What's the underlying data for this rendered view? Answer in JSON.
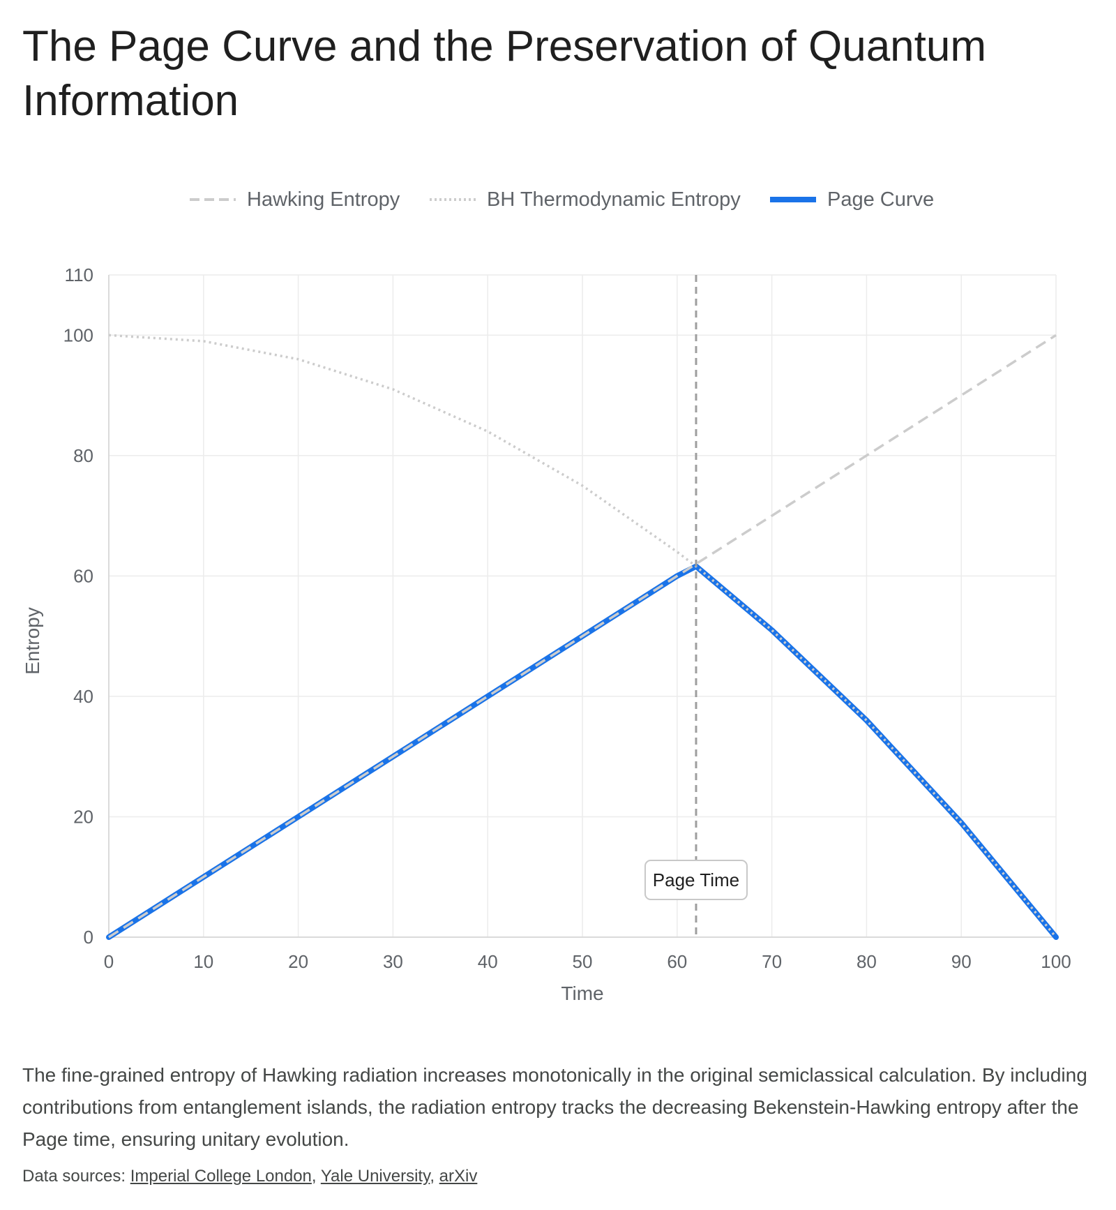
{
  "title": "The Page Curve and the Preservation of Quantum Information",
  "legend": [
    {
      "label": "Hawking Entropy",
      "color": "#cccccc",
      "style": "dashed"
    },
    {
      "label": "BH Thermodynamic Entropy",
      "color": "#cccccc",
      "style": "dotted"
    },
    {
      "label": "Page Curve",
      "color": "#1a73e8",
      "style": "solid"
    }
  ],
  "chart_data": {
    "type": "line",
    "xlabel": "Time",
    "ylabel": "Entropy",
    "xlim": [
      0,
      100
    ],
    "ylim": [
      0,
      110
    ],
    "x_ticks": [
      0,
      10,
      20,
      30,
      40,
      50,
      60,
      70,
      80,
      90,
      100
    ],
    "y_ticks": [
      0,
      20,
      40,
      60,
      80,
      100,
      110
    ],
    "grid": true,
    "legend_position": "top",
    "series": [
      {
        "name": "Hawking Entropy",
        "color": "#cccccc",
        "dash": "dashed",
        "x": [
          0,
          10,
          20,
          30,
          40,
          50,
          60,
          62,
          70,
          80,
          90,
          100
        ],
        "y": [
          0,
          10,
          20,
          30,
          40,
          50,
          60,
          62,
          70,
          80,
          90,
          100
        ]
      },
      {
        "name": "BH Thermodynamic Entropy",
        "color": "#cccccc",
        "dash": "dotted",
        "x": [
          0,
          10,
          20,
          30,
          40,
          50,
          60,
          62,
          70,
          80,
          90,
          100
        ],
        "y": [
          100,
          99,
          96,
          91,
          84,
          75,
          64,
          61.6,
          51,
          36,
          19,
          0
        ]
      },
      {
        "name": "Page Curve",
        "color": "#1a73e8",
        "dash": "solid",
        "x": [
          0,
          10,
          20,
          30,
          40,
          50,
          60,
          62,
          70,
          80,
          90,
          100
        ],
        "y": [
          0,
          10,
          20,
          30,
          40,
          50,
          60,
          61.6,
          51,
          36,
          19,
          0
        ]
      }
    ],
    "annotations": [
      {
        "type": "vline",
        "x": 62,
        "label": "Page Time",
        "label_y": 9.5,
        "color": "#9e9e9e"
      }
    ]
  },
  "caption": "The fine-grained entropy of Hawking radiation increases monotonically in the original semiclassical calculation. By including contributions from entanglement islands, the radiation entropy tracks the decreasing Bekenstein-Hawking entropy after the Page time, ensuring unitary evolution.",
  "sources": {
    "prefix": "Data sources: ",
    "links": [
      "Imperial College London",
      "Yale University",
      "arXiv"
    ]
  }
}
